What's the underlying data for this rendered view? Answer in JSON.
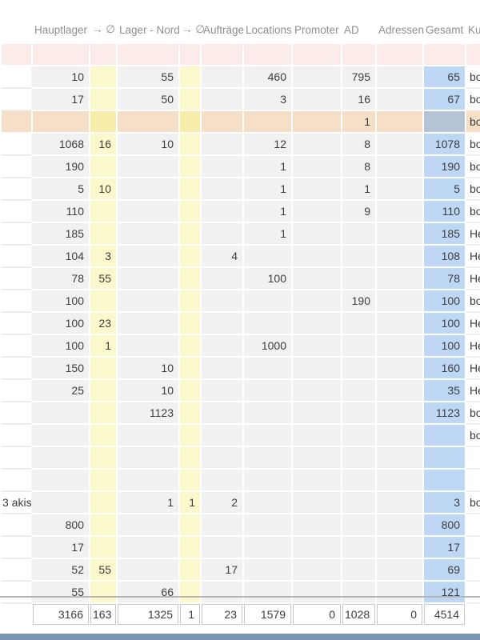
{
  "table": {
    "columns": [
      {
        "key": "label",
        "label": ""
      },
      {
        "key": "hl",
        "label": "Hauptlager"
      },
      {
        "key": "d1",
        "label": "→ ∅"
      },
      {
        "key": "ln",
        "label": "Lager - Nord"
      },
      {
        "key": "d2",
        "label": "→ ∅"
      },
      {
        "key": "auf",
        "label": "Aufträge"
      },
      {
        "key": "loc",
        "label": "Locations"
      },
      {
        "key": "pro",
        "label": "Promoter"
      },
      {
        "key": "ad",
        "label": "AD"
      },
      {
        "key": "adr",
        "label": "Adressen"
      },
      {
        "key": "ges",
        "label": "Gesamt"
      },
      {
        "key": "kun",
        "label": "Kunde"
      }
    ],
    "rows": [
      {
        "type": "pink"
      },
      {
        "hl": "10",
        "ln": "55",
        "loc": "460",
        "ad": "795",
        "ges": "65",
        "kun": "bo"
      },
      {
        "hl": "17",
        "ln": "50",
        "loc": "3",
        "ad": "16",
        "ges": "67",
        "kun": "bo"
      },
      {
        "type": "orange",
        "ad": "1",
        "kun": "bo"
      },
      {
        "hl": "1068",
        "d1": "16",
        "ln": "10",
        "loc": "12",
        "ad": "8",
        "ges": "1078",
        "kun": "bo"
      },
      {
        "hl": "190",
        "loc": "1",
        "ad": "8",
        "ges": "190",
        "kun": "bo"
      },
      {
        "hl": "5",
        "d1": "10",
        "loc": "1",
        "ad": "1",
        "ges": "5",
        "kun": "bo"
      },
      {
        "hl": "110",
        "loc": "1",
        "ad": "9",
        "ges": "110",
        "kun": "bo"
      },
      {
        "hl": "185",
        "loc": "1",
        "ges": "185",
        "kun": "He"
      },
      {
        "hl": "104",
        "d1": "3",
        "auf": "4",
        "ges": "108",
        "kun": "He"
      },
      {
        "hl": "78",
        "d1": "55",
        "loc": "100",
        "ges": "78",
        "kun": "He"
      },
      {
        "hl": "100",
        "ad": "190",
        "ges": "100",
        "kun": "bo"
      },
      {
        "hl": "100",
        "d1": "23",
        "ges": "100",
        "kun": "He"
      },
      {
        "hl": "100",
        "d1": "1",
        "loc": "1000",
        "ges": "100",
        "kun": "He"
      },
      {
        "hl": "150",
        "ln": "10",
        "ges": "160",
        "kun": "He"
      },
      {
        "hl": "25",
        "ln": "10",
        "ges": "35",
        "kun": "He"
      },
      {
        "ln": "1123",
        "ges": "1123",
        "kun": "bo"
      },
      {
        "kun": "bo"
      },
      {},
      {},
      {
        "label": "3 akis",
        "ln": "1",
        "d2": "1",
        "auf": "2",
        "ges": "3",
        "kun": "bo"
      },
      {
        "hl": "800",
        "ges": "800"
      },
      {
        "hl": "17",
        "ges": "17"
      },
      {
        "hl": "52",
        "d1": "55",
        "auf": "17",
        "ges": "69"
      },
      {
        "hl": "55",
        "ln": "66",
        "ges": "121"
      }
    ],
    "totals": {
      "hl": "3166",
      "d1": "163",
      "ln": "1325",
      "d2": "1",
      "auf": "23",
      "loc": "1579",
      "pro": "0",
      "ad": "1028",
      "adr": "0",
      "ges": "4514"
    }
  },
  "colors": {
    "cell_gray": "#f1f1f1",
    "highlight_yellow": "#fbf8cb",
    "total_column_blue": "#bdd7f4",
    "row_pink": "#fbebe9",
    "row_orange": "#f5dfc6",
    "orange_row_yellow": "#f8ecaa",
    "orange_row_blue": "#b4c3d6",
    "bottom_bar_blue": "#7b96ae"
  }
}
